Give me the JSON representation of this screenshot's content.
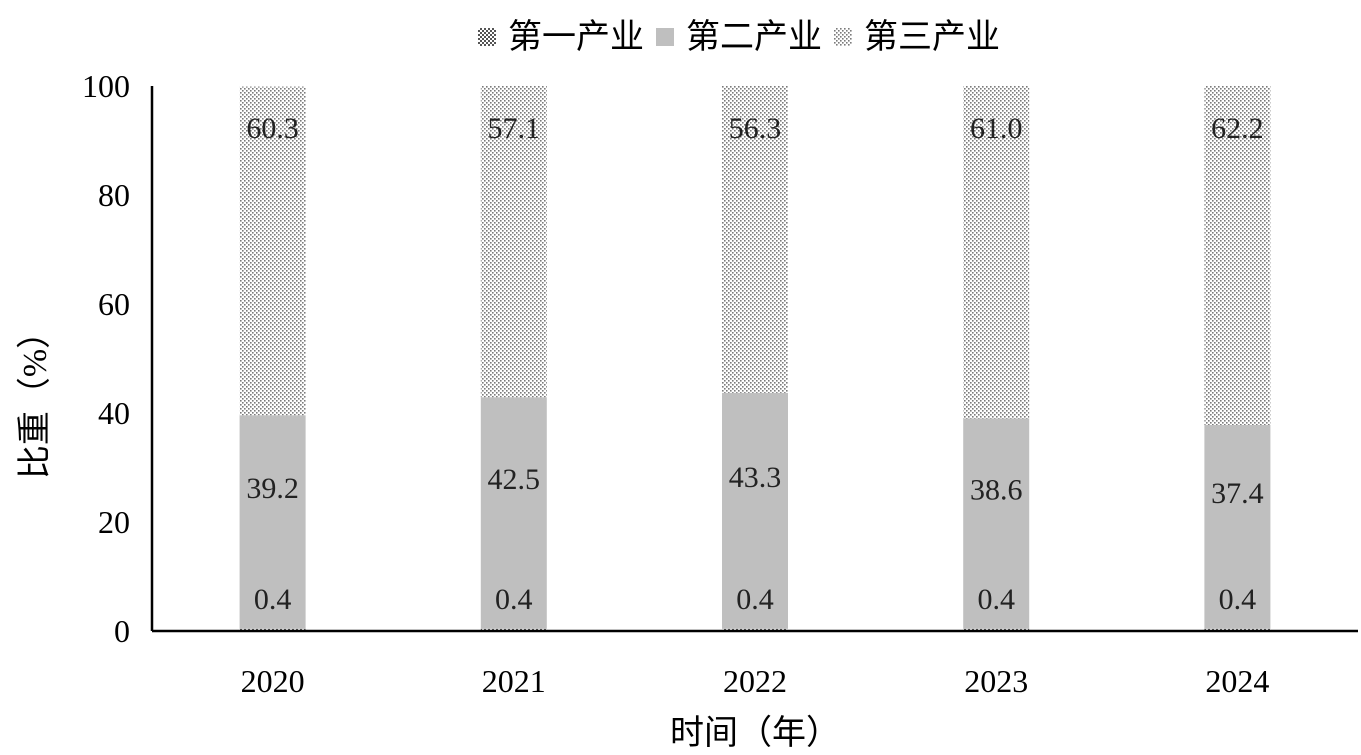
{
  "chart_data": {
    "type": "bar",
    "stacked": true,
    "categories": [
      "2020",
      "2021",
      "2022",
      "2023",
      "2024"
    ],
    "series": [
      {
        "name": "第一产业",
        "values": [
          0.4,
          0.4,
          0.4,
          0.4,
          0.4
        ],
        "pattern": "dense-dots",
        "color": "#d9d9d9"
      },
      {
        "name": "第二产业",
        "values": [
          39.2,
          42.5,
          43.3,
          38.6,
          37.4
        ],
        "pattern": "solid",
        "color": "#c0c0c0"
      },
      {
        "name": "第三产业",
        "values": [
          60.3,
          57.1,
          56.3,
          61.0,
          62.2
        ],
        "pattern": "sparse-dots",
        "color": "#ffffff"
      }
    ],
    "data_labels": [
      [
        "0.4",
        "0.4",
        "0.4",
        "0.4",
        "0.4"
      ],
      [
        "39.2",
        "42.5",
        "43.3",
        "38.6",
        "37.4"
      ],
      [
        "60.3",
        "57.1",
        "56.3",
        "61.0",
        "62.2"
      ]
    ],
    "xlabel": "时间（年）",
    "ylabel": "比重（%）",
    "ylim": [
      0,
      100
    ],
    "yticks": [
      "0",
      "20",
      "40",
      "60",
      "80",
      "100"
    ],
    "grid": false,
    "legend_position": "top-center"
  }
}
